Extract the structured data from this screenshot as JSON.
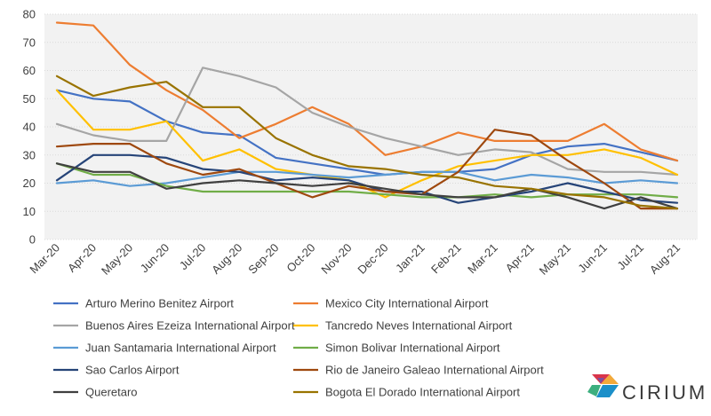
{
  "chart_data": {
    "type": "line",
    "title": "",
    "xlabel": "",
    "ylabel": "",
    "ylim": [
      0,
      80
    ],
    "yticks": [
      0,
      10,
      20,
      30,
      40,
      50,
      60,
      70,
      80
    ],
    "grid": true,
    "legend_position": "bottom",
    "categories": [
      "Mar-20",
      "Apr-20",
      "May-20",
      "Jun-20",
      "Jul-20",
      "Aug-20",
      "Sep-20",
      "Oct-20",
      "Nov-20",
      "Dec-20",
      "Jan-21",
      "Feb-21",
      "Mar-21",
      "Apr-21",
      "May-21",
      "Jun-21",
      "Jul-21",
      "Aug-21"
    ],
    "series": [
      {
        "name": "Arturo Merino Benitez Airport",
        "color": "#4472C4",
        "values": [
          53,
          50,
          49,
          42,
          38,
          37,
          29,
          27,
          25,
          23,
          24,
          24,
          25,
          30,
          33,
          34,
          31,
          28
        ]
      },
      {
        "name": "Mexico City International Airport",
        "color": "#ED7D31",
        "values": [
          77,
          76,
          62,
          53,
          46,
          36,
          41,
          47,
          41,
          30,
          33,
          38,
          35,
          35,
          35,
          41,
          32,
          28
        ]
      },
      {
        "name": "Buenos Aires Ezeiza International Airport",
        "color": "#A5A5A5",
        "values": [
          41,
          37,
          35,
          35,
          61,
          58,
          54,
          45,
          40,
          36,
          33,
          30,
          32,
          31,
          25,
          24,
          24,
          23
        ]
      },
      {
        "name": "Tancredo Neves International Airport",
        "color": "#FFC000",
        "values": [
          53,
          39,
          39,
          42,
          28,
          32,
          25,
          23,
          21,
          15,
          21,
          26,
          28,
          30,
          30,
          32,
          29,
          23
        ]
      },
      {
        "name": "Juan Santamaria International Airport",
        "color": "#5B9BD5",
        "values": [
          20,
          21,
          19,
          20,
          22,
          24,
          24,
          23,
          22,
          23,
          24,
          24,
          21,
          23,
          22,
          20,
          21,
          20
        ]
      },
      {
        "name": "Simon Bolivar International Airport",
        "color": "#70AD47",
        "values": [
          27,
          23,
          23,
          19,
          17,
          17,
          17,
          17,
          17,
          16,
          15,
          15,
          16,
          15,
          16,
          16,
          16,
          15
        ]
      },
      {
        "name": "Sao Carlos Airport",
        "color": "#264478",
        "values": [
          21,
          30,
          30,
          29,
          25,
          24,
          21,
          22,
          21,
          17,
          17,
          13,
          15,
          17,
          20,
          17,
          14,
          13
        ]
      },
      {
        "name": "Rio de Janeiro Galeao International Airport",
        "color": "#9E480E",
        "values": [
          33,
          34,
          34,
          27,
          23,
          25,
          20,
          15,
          19,
          17,
          16,
          24,
          39,
          37,
          28,
          20,
          11,
          11
        ]
      },
      {
        "name": "Queretaro",
        "color": "#404040",
        "values": [
          27,
          24,
          24,
          18,
          20,
          21,
          20,
          19,
          20,
          18,
          16,
          15,
          15,
          18,
          15,
          11,
          15,
          11
        ]
      },
      {
        "name": "Bogota El Dorado International Airport",
        "color": "#997300",
        "values": [
          58,
          51,
          54,
          56,
          47,
          47,
          36,
          30,
          26,
          25,
          23,
          22,
          19,
          18,
          16,
          15,
          12,
          11
        ]
      }
    ]
  },
  "brand": {
    "name": "CIRIUM",
    "logo_colors": [
      "#D9344A",
      "#F2A93B",
      "#3DAF7F",
      "#1B8FC9",
      "#7B4FA0"
    ]
  }
}
